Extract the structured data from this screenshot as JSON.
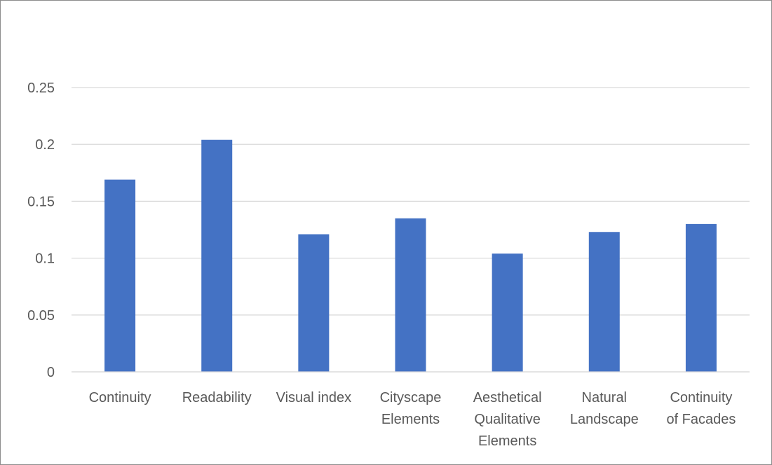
{
  "chart_data": {
    "type": "bar",
    "title": "",
    "xlabel": "",
    "ylabel": "",
    "categories": [
      [
        "Continuity"
      ],
      [
        "Readability"
      ],
      [
        "Visual index"
      ],
      [
        "Cityscape",
        "Elements"
      ],
      [
        "Aesthetical",
        "Qualitative",
        "Elements"
      ],
      [
        "Natural",
        "Landscape"
      ],
      [
        "Continuity",
        "of Facades"
      ]
    ],
    "values": [
      0.169,
      0.204,
      0.121,
      0.135,
      0.104,
      0.123,
      0.13
    ],
    "ylim": [
      0,
      0.25
    ],
    "yticks": [
      "0",
      "0.05",
      "0.1",
      "0.15",
      "0.2",
      "0.25"
    ],
    "ytick_values": [
      0,
      0.05,
      0.1,
      0.15,
      0.2,
      0.25
    ],
    "grid": true,
    "colors": {
      "bar": "#4472C4",
      "grid": "#D9D9D9",
      "text": "#595959"
    }
  }
}
